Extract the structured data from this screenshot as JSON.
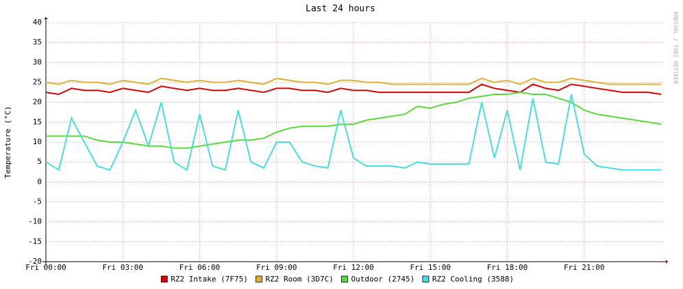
{
  "chart_data": {
    "type": "line",
    "title": "Last 24 hours",
    "y_label": "Temperature (°C)",
    "side_text": "RRDTOOL / TOBI OETIKER",
    "x": [
      0,
      0.5,
      1,
      1.5,
      2,
      2.5,
      3,
      3.5,
      4,
      4.5,
      5,
      5.5,
      6,
      6.5,
      7,
      7.5,
      8,
      8.5,
      9,
      9.5,
      10,
      10.5,
      11,
      11.5,
      12,
      12.5,
      13,
      13.5,
      14,
      14.5,
      15,
      15.5,
      16,
      16.5,
      17,
      17.5,
      18,
      18.5,
      19,
      19.5,
      20,
      20.5,
      21,
      21.5,
      22,
      22.5,
      23,
      23.5,
      24
    ],
    "xlim": [
      0,
      24
    ],
    "xticks": [
      {
        "value": 0,
        "label": "Fri 00:00"
      },
      {
        "value": 3,
        "label": "Fri 03:00"
      },
      {
        "value": 6,
        "label": "Fri 06:00"
      },
      {
        "value": 9,
        "label": "Fri 09:00"
      },
      {
        "value": 12,
        "label": "Fri 12:00"
      },
      {
        "value": 15,
        "label": "Fri 15:00"
      },
      {
        "value": 18,
        "label": "Fri 18:00"
      },
      {
        "value": 21,
        "label": "Fri 21:00"
      }
    ],
    "ylim": [
      -20,
      40
    ],
    "yticks": [
      -20,
      -15,
      -10,
      -5,
      0,
      5,
      10,
      15,
      20,
      25,
      30,
      35,
      40
    ],
    "grid": true,
    "series": [
      {
        "name": "RZ2 Intake (7F75)",
        "color": "#dd0000",
        "values": [
          22.5,
          22,
          23.5,
          23,
          23,
          22.5,
          23.5,
          23,
          22.5,
          24,
          23.5,
          23,
          23.5,
          23,
          23,
          23.5,
          23,
          22.5,
          23.5,
          23.5,
          23,
          23,
          22.5,
          23.5,
          23,
          23,
          22.5,
          22.5,
          22.5,
          22.5,
          22.5,
          22.5,
          22.5,
          22.5,
          24.5,
          23.5,
          23,
          22.5,
          24.5,
          23.5,
          23,
          24.5,
          24,
          23.5,
          23,
          22.5,
          22.5,
          22.5,
          22
        ]
      },
      {
        "name": "RZ2 Room (3D7C)",
        "color": "#e0b030",
        "values": [
          25,
          24.5,
          25.5,
          25,
          25,
          24.5,
          25.5,
          25,
          24.5,
          26,
          25.5,
          25,
          25.5,
          25,
          25,
          25.5,
          25,
          24.5,
          26,
          25.5,
          25,
          25,
          24.5,
          25.5,
          25.5,
          25,
          25,
          24.5,
          24.5,
          24.5,
          24.5,
          24.5,
          24.5,
          24.5,
          26,
          25,
          25.5,
          24.5,
          26,
          25,
          25,
          26,
          25.5,
          25,
          24.5,
          24.5,
          24.5,
          24.5,
          24.5
        ]
      },
      {
        "name": "Outdoor (2745)",
        "color": "#55dd33",
        "values": [
          11.5,
          11.5,
          11.5,
          11.5,
          10.5,
          10,
          10,
          9.5,
          9,
          9,
          8.5,
          8.5,
          9,
          9.5,
          10,
          10.5,
          10.5,
          11,
          12.5,
          13.5,
          14,
          14,
          14,
          14.5,
          14.5,
          15.5,
          16,
          16.5,
          17,
          19,
          18.5,
          19.5,
          20,
          21,
          21.5,
          22,
          22,
          22.5,
          22,
          22,
          21,
          20,
          18,
          17,
          16.5,
          16,
          15.5,
          15,
          14.5
        ]
      },
      {
        "name": "RZ2 Cooling (3588)",
        "color": "#44dde0",
        "values": [
          5,
          3,
          16,
          10,
          4,
          3,
          10,
          18,
          9,
          20,
          5,
          3,
          17,
          4,
          3,
          18,
          5,
          3.5,
          10,
          10,
          5,
          4,
          3.5,
          18,
          6,
          4,
          4,
          4,
          3.5,
          5,
          4.5,
          4.5,
          4.5,
          4.5,
          20,
          6,
          18,
          3,
          21,
          5,
          4.5,
          22,
          7,
          4,
          3.5,
          3,
          3,
          3,
          3
        ]
      }
    ]
  }
}
